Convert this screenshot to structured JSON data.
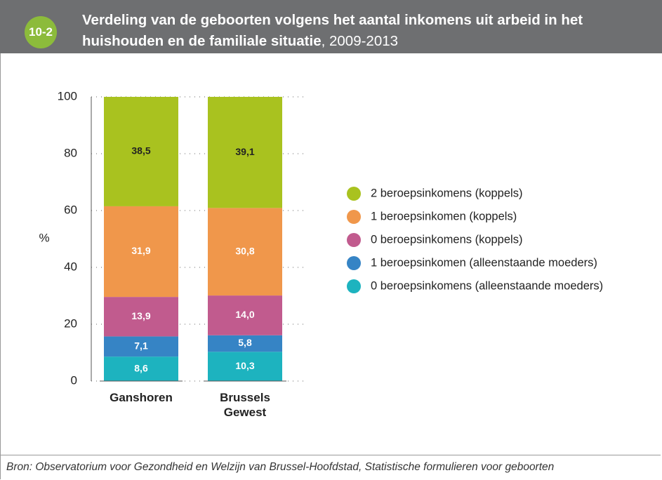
{
  "figure_number": "10-2",
  "chart_data": {
    "type": "stacked_bar",
    "title": "Verdeling van de geboorten volgens het aantal inkomens uit arbeid in het huishouden en de familiale situatie",
    "subtitle": ", 2009-2013",
    "y_label": "%",
    "categories": [
      "Ganshoren",
      "Brussels Gewest"
    ],
    "series": [
      {
        "name": "0 beroepsinkomens (alleenstaande moeders)",
        "color": "#1db3bf",
        "label_color": "#ffffff",
        "values": [
          8.6,
          10.3
        ],
        "value_labels": [
          "8,6",
          "10,3"
        ]
      },
      {
        "name": "1 beroepsinkomen (alleenstaande moeders)",
        "color": "#3684c5",
        "label_color": "#ffffff",
        "values": [
          7.1,
          5.8
        ],
        "value_labels": [
          "7,1",
          "5,8"
        ]
      },
      {
        "name": "0 beroepsinkomens (koppels)",
        "color": "#c15b8e",
        "label_color": "#ffffff",
        "values": [
          13.9,
          14.0
        ],
        "value_labels": [
          "13,9",
          "14,0"
        ]
      },
      {
        "name": "1 beroepsinkomen (koppels)",
        "color": "#f0974b",
        "label_color": "#ffffff",
        "values": [
          31.9,
          30.8
        ],
        "value_labels": [
          "31,9",
          "30,8"
        ]
      },
      {
        "name": "2 beroepsinkomens (koppels)",
        "color": "#a9c21f",
        "label_color": "#222222",
        "values": [
          38.5,
          39.1
        ],
        "value_labels": [
          "38,5",
          "39,1"
        ]
      }
    ],
    "ylim": [
      0,
      100
    ],
    "yticks": [
      0,
      20,
      40,
      60,
      80,
      100
    ],
    "grid": true,
    "legend": "right"
  },
  "source": "Bron: Observatorium voor Gezondheid en Welzijn van Brussel-Hoofdstad, Statistische formulieren voor geboorten"
}
